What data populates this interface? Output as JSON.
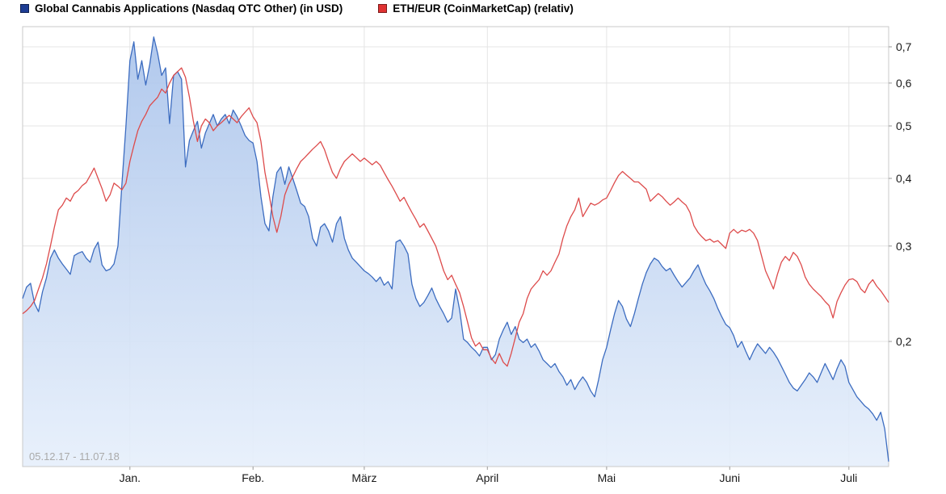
{
  "chart": {
    "date_range_label": "05.12.17 - 11.07.18"
  },
  "colors": {
    "grid": "#e4e4e4",
    "frame": "#c9c9c9",
    "tick": "#999999",
    "axis_text": "#1a1a1a",
    "date_range_text": "#aaaaaa",
    "background": "#ffffff"
  },
  "chart_data": {
    "type": "line",
    "scale": "log-y",
    "title": "",
    "x_start_date": "05.12.17",
    "x_end_date": "11.07.18",
    "x_unit": "days since 05.12.17",
    "x_tick_labels": [
      "Jan.",
      "Feb.",
      "März",
      "April",
      "Mai",
      "Juni",
      "Juli"
    ],
    "x_tick_day_index": [
      27,
      58,
      86,
      117,
      147,
      178,
      208
    ],
    "y_ticks": [
      0.2,
      0.3,
      0.4,
      0.5,
      0.6,
      0.7
    ],
    "y_tick_labels": [
      "0,2",
      "0,3",
      "0,4",
      "0,5",
      "0,6",
      "0,7"
    ],
    "ylim_approx": [
      0.117,
      0.763
    ],
    "grid": true,
    "legend_position": "top-left",
    "series": [
      {
        "name": "Global Cannabis Applications (Nasdaq OTC Other) (in USD)",
        "color": "#3c6cc0",
        "swatch_color": "#1d3d94",
        "fill": true,
        "fill_top": "#a9c3eb",
        "fill_bottom": "#e6effb",
        "values": [
          0.24,
          0.252,
          0.256,
          0.235,
          0.227,
          0.247,
          0.262,
          0.285,
          0.295,
          0.285,
          0.278,
          0.272,
          0.266,
          0.288,
          0.291,
          0.293,
          0.285,
          0.28,
          0.296,
          0.305,
          0.277,
          0.27,
          0.272,
          0.278,
          0.3,
          0.39,
          0.5,
          0.66,
          0.715,
          0.61,
          0.66,
          0.595,
          0.65,
          0.73,
          0.68,
          0.62,
          0.64,
          0.505,
          0.62,
          0.63,
          0.61,
          0.42,
          0.47,
          0.49,
          0.51,
          0.455,
          0.485,
          0.505,
          0.525,
          0.5,
          0.515,
          0.525,
          0.505,
          0.535,
          0.52,
          0.5,
          0.48,
          0.47,
          0.465,
          0.43,
          0.37,
          0.33,
          0.32,
          0.37,
          0.41,
          0.42,
          0.39,
          0.42,
          0.4,
          0.38,
          0.36,
          0.355,
          0.34,
          0.31,
          0.3,
          0.325,
          0.33,
          0.32,
          0.305,
          0.33,
          0.34,
          0.31,
          0.295,
          0.285,
          0.28,
          0.275,
          0.27,
          0.267,
          0.263,
          0.258,
          0.263,
          0.254,
          0.258,
          0.25,
          0.305,
          0.308,
          0.3,
          0.29,
          0.255,
          0.24,
          0.232,
          0.236,
          0.243,
          0.251,
          0.24,
          0.232,
          0.225,
          0.217,
          0.221,
          0.25,
          0.229,
          0.202,
          0.199,
          0.195,
          0.192,
          0.188,
          0.195,
          0.195,
          0.185,
          0.189,
          0.202,
          0.21,
          0.217,
          0.206,
          0.213,
          0.202,
          0.199,
          0.202,
          0.195,
          0.198,
          0.192,
          0.185,
          0.182,
          0.179,
          0.182,
          0.176,
          0.172,
          0.166,
          0.17,
          0.163,
          0.168,
          0.172,
          0.168,
          0.162,
          0.158,
          0.17,
          0.185,
          0.195,
          0.21,
          0.225,
          0.238,
          0.232,
          0.22,
          0.213,
          0.225,
          0.24,
          0.255,
          0.268,
          0.278,
          0.285,
          0.282,
          0.275,
          0.27,
          0.273,
          0.265,
          0.258,
          0.252,
          0.257,
          0.262,
          0.27,
          0.277,
          0.265,
          0.255,
          0.248,
          0.24,
          0.23,
          0.222,
          0.215,
          0.212,
          0.205,
          0.195,
          0.2,
          0.192,
          0.185,
          0.192,
          0.198,
          0.194,
          0.19,
          0.195,
          0.191,
          0.186,
          0.18,
          0.174,
          0.168,
          0.164,
          0.162,
          0.166,
          0.17,
          0.175,
          0.172,
          0.168,
          0.175,
          0.182,
          0.176,
          0.17,
          0.178,
          0.185,
          0.18,
          0.168,
          0.163,
          0.158,
          0.155,
          0.152,
          0.15,
          0.147,
          0.143,
          0.148,
          0.138,
          0.12
        ]
      },
      {
        "name": "ETH/EUR (CoinMarketCap) (relativ)",
        "color": "#dd4b4b",
        "swatch_color": "#e03232",
        "fill": false,
        "values": [
          0.225,
          0.228,
          0.232,
          0.238,
          0.25,
          0.262,
          0.278,
          0.3,
          0.325,
          0.35,
          0.357,
          0.368,
          0.363,
          0.375,
          0.38,
          0.388,
          0.393,
          0.405,
          0.418,
          0.4,
          0.383,
          0.363,
          0.373,
          0.392,
          0.387,
          0.381,
          0.392,
          0.43,
          0.46,
          0.49,
          0.51,
          0.525,
          0.545,
          0.555,
          0.565,
          0.585,
          0.575,
          0.6,
          0.62,
          0.63,
          0.64,
          0.615,
          0.565,
          0.51,
          0.468,
          0.5,
          0.515,
          0.507,
          0.49,
          0.5,
          0.507,
          0.515,
          0.523,
          0.515,
          0.507,
          0.52,
          0.53,
          0.54,
          0.52,
          0.507,
          0.468,
          0.41,
          0.375,
          0.34,
          0.318,
          0.34,
          0.373,
          0.39,
          0.403,
          0.417,
          0.43,
          0.437,
          0.445,
          0.453,
          0.46,
          0.468,
          0.452,
          0.43,
          0.41,
          0.4,
          0.417,
          0.43,
          0.437,
          0.444,
          0.437,
          0.43,
          0.436,
          0.43,
          0.424,
          0.43,
          0.423,
          0.41,
          0.398,
          0.387,
          0.375,
          0.363,
          0.369,
          0.357,
          0.346,
          0.336,
          0.325,
          0.33,
          0.32,
          0.31,
          0.3,
          0.285,
          0.27,
          0.26,
          0.265,
          0.255,
          0.246,
          0.232,
          0.217,
          0.203,
          0.196,
          0.199,
          0.193,
          0.193,
          0.186,
          0.182,
          0.19,
          0.183,
          0.18,
          0.19,
          0.203,
          0.217,
          0.225,
          0.24,
          0.25,
          0.255,
          0.26,
          0.27,
          0.265,
          0.27,
          0.28,
          0.29,
          0.31,
          0.327,
          0.34,
          0.35,
          0.368,
          0.34,
          0.35,
          0.36,
          0.357,
          0.36,
          0.365,
          0.368,
          0.38,
          0.393,
          0.405,
          0.412,
          0.406,
          0.4,
          0.394,
          0.394,
          0.388,
          0.382,
          0.363,
          0.369,
          0.375,
          0.37,
          0.363,
          0.357,
          0.362,
          0.368,
          0.362,
          0.357,
          0.346,
          0.327,
          0.318,
          0.312,
          0.307,
          0.309,
          0.305,
          0.307,
          0.302,
          0.297,
          0.317,
          0.322,
          0.317,
          0.321,
          0.319,
          0.322,
          0.317,
          0.307,
          0.288,
          0.27,
          0.26,
          0.25,
          0.266,
          0.28,
          0.287,
          0.282,
          0.292,
          0.287,
          0.277,
          0.263,
          0.255,
          0.25,
          0.246,
          0.242,
          0.237,
          0.233,
          0.221,
          0.237,
          0.246,
          0.254,
          0.26,
          0.261,
          0.258,
          0.25,
          0.246,
          0.255,
          0.26,
          0.253,
          0.248,
          0.242,
          0.236
        ]
      }
    ]
  }
}
